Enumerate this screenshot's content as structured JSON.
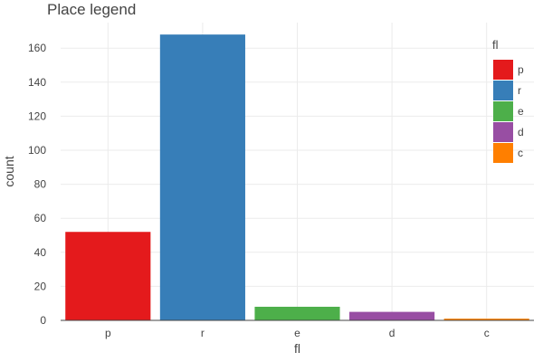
{
  "chart_data": {
    "type": "bar",
    "title": "Place legend",
    "xlabel": "fl",
    "ylabel": "count",
    "categories": [
      "p",
      "r",
      "e",
      "d",
      "c"
    ],
    "values": [
      52,
      168,
      8,
      5,
      1
    ],
    "colors": [
      "#e41a1c",
      "#377eb8",
      "#4daf4a",
      "#984ea3",
      "#ff7f00"
    ],
    "ylim": [
      0,
      175
    ],
    "yticks": [
      0,
      20,
      40,
      60,
      80,
      100,
      120,
      140,
      160
    ],
    "grid": true,
    "legend": {
      "title": "fl",
      "placement": "top-right",
      "entries": [
        "p",
        "r",
        "e",
        "d",
        "c"
      ]
    }
  }
}
